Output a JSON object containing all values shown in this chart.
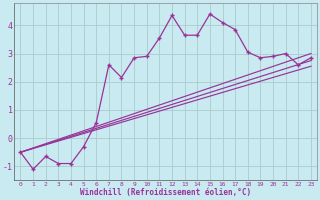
{
  "bg_color": "#c8eaf0",
  "grid_color": "#aacccc",
  "line_color": "#993399",
  "xlabel": "Windchill (Refroidissement éolien,°C)",
  "xlabel_color": "#993399",
  "xlim": [
    -0.5,
    23.5
  ],
  "ylim": [
    -1.5,
    4.8
  ],
  "yticks": [
    -1,
    0,
    1,
    2,
    3,
    4
  ],
  "xticks": [
    0,
    1,
    2,
    3,
    4,
    5,
    6,
    7,
    8,
    9,
    10,
    11,
    12,
    13,
    14,
    15,
    16,
    17,
    18,
    19,
    20,
    21,
    22,
    23
  ],
  "series": [
    {
      "x": [
        0,
        1,
        2,
        3,
        4,
        5,
        6,
        7,
        8,
        9,
        10,
        11,
        12,
        13,
        14,
        15,
        16,
        17,
        18,
        19,
        20,
        21,
        22,
        23
      ],
      "y": [
        -0.5,
        -1.1,
        -0.65,
        -0.9,
        -0.9,
        -0.3,
        0.55,
        2.6,
        2.15,
        2.85,
        2.9,
        3.55,
        4.35,
        3.65,
        3.65,
        4.4,
        4.1,
        3.85,
        3.05,
        2.85,
        2.9,
        3.0,
        2.6,
        2.85
      ],
      "has_marker": true
    },
    {
      "x": [
        0,
        23
      ],
      "y": [
        -0.5,
        2.55
      ],
      "has_marker": false
    },
    {
      "x": [
        0,
        23
      ],
      "y": [
        -0.5,
        2.75
      ],
      "has_marker": false
    },
    {
      "x": [
        0,
        23
      ],
      "y": [
        -0.5,
        3.0
      ],
      "has_marker": false
    }
  ]
}
